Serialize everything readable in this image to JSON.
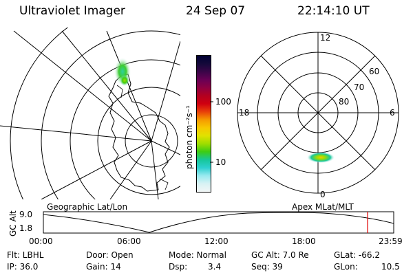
{
  "header": {
    "instrument": "Ultraviolet Imager",
    "date": "24 Sep 07",
    "time": "22:14:10 UT"
  },
  "colorbar": {
    "label": "photon cm⁻²s⁻¹",
    "ticks": [
      "100",
      "10"
    ],
    "colors": [
      "#000033",
      "#14093a",
      "#3a0548",
      "#680055",
      "#8e0042",
      "#b30020",
      "#d00010",
      "#e8400a",
      "#f59a00",
      "#f7c800",
      "#e0e200",
      "#9edd00",
      "#3ccc14",
      "#16c79a",
      "#2ed0d0",
      "#9aeaf0",
      "#d8f2f4",
      "#f2f6f6"
    ]
  },
  "polar_plot": {
    "mlt_labels": {
      "top": "12",
      "left": "18",
      "right": "6",
      "bottom": "0"
    },
    "lat_labels": [
      "60",
      "70",
      "80"
    ]
  },
  "map_labels": {
    "left": "Geographic Lat/Lon",
    "right": "Apex MLat/MLT"
  },
  "altitude_plot": {
    "axis_label": "GC Alt",
    "y_ticks": [
      "9.0",
      "1.8"
    ],
    "x_ticks": [
      "00:00",
      "06:00",
      "12:00",
      "18:00",
      "23:59"
    ],
    "marker_color": "#e00000"
  },
  "status": {
    "flt": "Flt: LBHL",
    "ip": "IP: 36.0",
    "door": "Door: Open",
    "gain": "Gain: 14",
    "mode": "Mode: Normal",
    "dsp_label": "Dsp:",
    "dsp_value": "3.4",
    "gc_alt": "GC Alt: 7.0 Re",
    "seq": "Seq: 39",
    "glat": "GLat: -66.2",
    "glon_label": "GLon:",
    "glon_value": "10.5"
  }
}
